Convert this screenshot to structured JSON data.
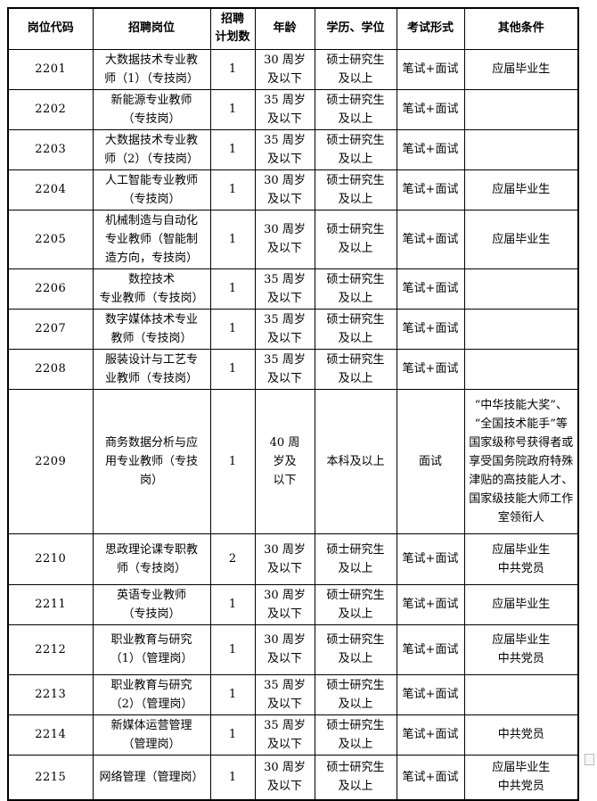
{
  "table": {
    "headers": [
      "岗位代码",
      "招聘岗位",
      "招聘\n计划数",
      "年龄",
      "学历、学位",
      "考试形式",
      "其他条件"
    ],
    "rows": [
      {
        "code": "2201",
        "position": "大数据技术专业教\n师（1）（专技岗）",
        "count": "1",
        "age": "30 周岁\n及以下",
        "degree": "硕士研究生\n及以上",
        "exam": "笔试+面试",
        "other": "应届毕业生"
      },
      {
        "code": "2202",
        "position": "新能源专业教师\n（专技岗）",
        "count": "1",
        "age": "35 周岁\n及以下",
        "degree": "硕士研究生\n及以上",
        "exam": "笔试+面试",
        "other": ""
      },
      {
        "code": "2203",
        "position": "大数据技术专业教\n师（2）（专技岗）",
        "count": "1",
        "age": "35 周岁\n及以下",
        "degree": "硕士研究生\n及以上",
        "exam": "笔试+面试",
        "other": ""
      },
      {
        "code": "2204",
        "position": "人工智能专业教师\n（专技岗）",
        "count": "1",
        "age": "30 周岁\n及以下",
        "degree": "硕士研究生\n及以上",
        "exam": "笔试+面试",
        "other": "应届毕业生"
      },
      {
        "code": "2205",
        "position": "机械制造与自动化\n专业教师（智能制\n造方向，专技岗）",
        "count": "1",
        "age": "30 周岁\n及以下",
        "degree": "硕士研究生\n及以上",
        "exam": "笔试+面试",
        "other": "应届毕业生"
      },
      {
        "code": "2206",
        "position": "数控技术\n专业教师（专技岗）",
        "count": "1",
        "age": "35 周岁\n及以下",
        "degree": "硕士研究生\n及以上",
        "exam": "笔试+面试",
        "other": ""
      },
      {
        "code": "2207",
        "position": "数字媒体技术专业\n教师（专技岗）",
        "count": "1",
        "age": "35 周岁\n及以下",
        "degree": "硕士研究生\n及以上",
        "exam": "笔试+面试",
        "other": ""
      },
      {
        "code": "2208",
        "position": "服装设计与工艺专\n业教师（专技岗）",
        "count": "1",
        "age": "35 周岁\n及以下",
        "degree": "硕士研究生\n及以上",
        "exam": "笔试+面试",
        "other": ""
      },
      {
        "code": "2209",
        "position": "商务数据分析与应\n用专业教师（专技\n岗）",
        "count": "1",
        "age": "40 周\n岁及\n以下",
        "degree": "本科及以上",
        "exam": "面试",
        "other": "“中华技能大奖”、\n“全国技术能手”等\n国家级称号获得者或\n享受国务院政府特殊\n津贴的高技能人才、\n国家级技能大师工作\n室领衔人"
      },
      {
        "code": "2210",
        "position": "思政理论课专职教\n师（专技岗）",
        "count": "2",
        "age": "30 周岁\n及以下",
        "degree": "硕士研究生\n及以上",
        "exam": "笔试+面试",
        "other": "应届毕业生\n中共党员"
      },
      {
        "code": "2211",
        "position": "英语专业教师\n（专技岗）",
        "count": "1",
        "age": "30 周岁\n及以下",
        "degree": "硕士研究生\n及以上",
        "exam": "笔试+面试",
        "other": "应届毕业生"
      },
      {
        "code": "2212",
        "position": "职业教育与研究\n（1）（管理岗）",
        "count": "1",
        "age": "30 周岁\n及以下",
        "degree": "硕士研究生\n及以上",
        "exam": "笔试+面试",
        "other": "应届毕业生\n中共党员"
      },
      {
        "code": "2213",
        "position": "职业教育与研究\n（2）（管理岗）",
        "count": "1",
        "age": "35 周岁\n及以下",
        "degree": "硕士研究生\n及以上",
        "exam": "笔试+面试",
        "other": ""
      },
      {
        "code": "2214",
        "position": "新媒体运营管理\n（管理岗）",
        "count": "1",
        "age": "35 周岁\n及以下",
        "degree": "硕士研究生\n及以上",
        "exam": "笔试+面试",
        "other": "中共党员"
      },
      {
        "code": "2215",
        "position": "网络管理（管理岗）",
        "count": "1",
        "age": "30 周岁\n及以下",
        "degree": "硕士研究生\n及以上",
        "exam": "笔试+面试",
        "other": "应届毕业生\n中共党员"
      }
    ]
  }
}
